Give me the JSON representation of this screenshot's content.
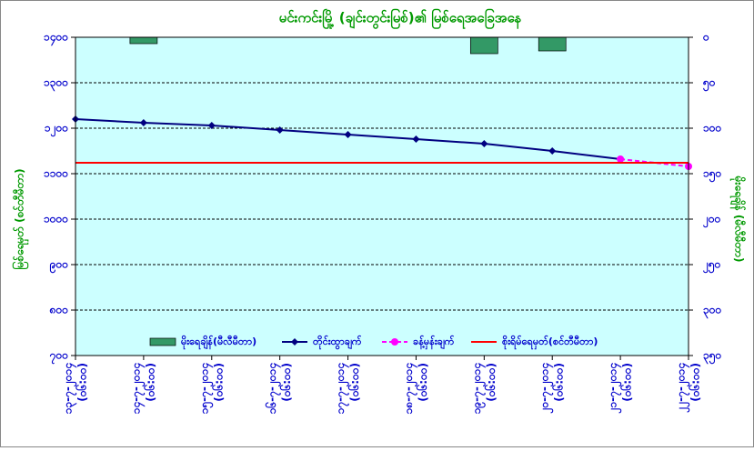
{
  "chart_data": {
    "type": "combo",
    "title": "မင်းကင်းမြို့ (ချင်းတွင်းမြစ်)၏ မြစ်ရေအခြေအနေ",
    "ylabel": "မြစ်ရေမှတ် (စင်တီမီတာ)",
    "y2label": "မိုးရေချိန် (မီလီမီတာ)",
    "categories": [
      "၁၃-၇-၂၀၁၄",
      "၁၄-၇-၂၀၁၄",
      "၁၅-၇-၂၀၁၄",
      "၁၆-၇-၂၀၁၄",
      "၁၇-၇-၂၀၁၄",
      "၁၈-၇-၂၀၁၄",
      "၁၉-၇-၂၀၁၄",
      "၂၀-၇-၂၀၁၄",
      "၂၁-၇-၂၀၁၄",
      "၂၂-၇-၂၀၁၄"
    ],
    "category_times": [
      "(၀၆:၀၀)",
      "(၀၆:၀၀)",
      "(၀၆:၀၀)",
      "(၀၆:၀၀)",
      "(၀၆:၀၀)",
      "(၀၆:၀၀)",
      "(၀၆:၀၀)",
      "(၀၆:၀၀)",
      "(၀၆:၀၀)",
      "(၀၆:၀၀)"
    ],
    "ylim": [
      700,
      1400
    ],
    "yticks": [
      {
        "value": 700,
        "label": "၇၀၀"
      },
      {
        "value": 800,
        "label": "၈၀၀"
      },
      {
        "value": 900,
        "label": "၉၀၀"
      },
      {
        "value": 1000,
        "label": "၁၀၀၀"
      },
      {
        "value": 1100,
        "label": "၁၁၀၀"
      },
      {
        "value": 1200,
        "label": "၁၂၀၀"
      },
      {
        "value": 1300,
        "label": "၁၃၀၀"
      },
      {
        "value": 1400,
        "label": "၁၄၀၀"
      }
    ],
    "y2lim": [
      0,
      350
    ],
    "y2_reversed": true,
    "y2ticks": [
      {
        "value": 0,
        "label": "၀"
      },
      {
        "value": 50,
        "label": "၅၀"
      },
      {
        "value": 100,
        "label": "၁၀၀"
      },
      {
        "value": 150,
        "label": "၁၅၀"
      },
      {
        "value": 200,
        "label": "၂၀၀"
      },
      {
        "value": 250,
        "label": "၂၅၀"
      },
      {
        "value": 300,
        "label": "၃၀၀"
      },
      {
        "value": 350,
        "label": "၃၅၀"
      }
    ],
    "grid": true,
    "series": [
      {
        "name": "မိုးရေချိန်(မီလီမီတာ)",
        "kind": "bar",
        "axis": "y2",
        "color": "#339966",
        "values": [
          null,
          7,
          null,
          null,
          null,
          null,
          18,
          15,
          null,
          null
        ]
      },
      {
        "name": "တိုင်းထွာချက်",
        "kind": "line",
        "marker": "diamond",
        "color": "#000080",
        "values": [
          1220,
          1212,
          1206,
          1196,
          1186,
          1176,
          1166,
          1150,
          1132,
          null
        ]
      },
      {
        "name": "ခန့်မှန်းချက်",
        "kind": "line",
        "marker": "circle",
        "dashed": true,
        "color": "#ff00ff",
        "values": [
          null,
          null,
          null,
          null,
          null,
          null,
          null,
          null,
          1132,
          1116
        ]
      },
      {
        "name": "စိုးရိမ်ရေမှတ်(စင်တီမီတာ)",
        "kind": "line",
        "color": "#ff0000",
        "values": [
          1124,
          1124,
          1124,
          1124,
          1124,
          1124,
          1124,
          1124,
          1124,
          1124
        ]
      }
    ]
  }
}
